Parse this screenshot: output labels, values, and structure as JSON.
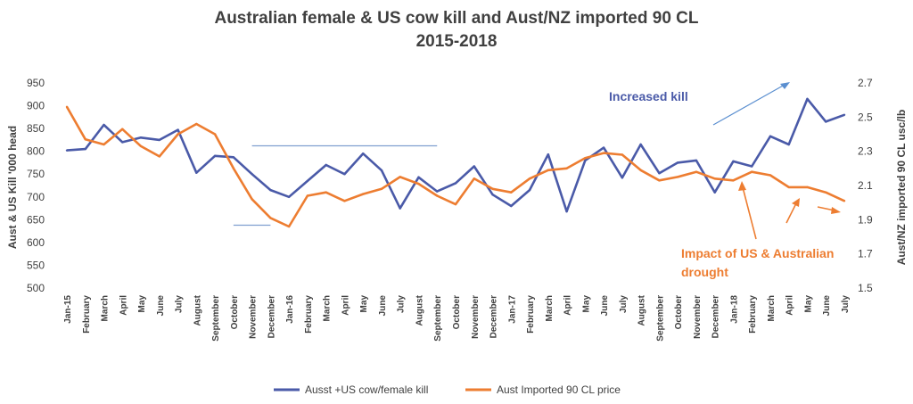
{
  "chart_data": {
    "type": "line",
    "title": "Australian female & US cow kill and  Aust/NZ imported 90 CL",
    "subtitle": "2015-2018",
    "ylabel": "Aust & US Kill '000 head",
    "y2label": "Aust/NZ imported 90 CL usc/lb",
    "ylim": [
      500,
      950
    ],
    "yticks": [
      500,
      550,
      600,
      650,
      700,
      750,
      800,
      850,
      900,
      950
    ],
    "y2lim": [
      1.5,
      2.7
    ],
    "y2ticks": [
      "1.5",
      "1.7",
      "1.9",
      "2.1",
      "2.3",
      "2.5",
      "2.7"
    ],
    "grid": false,
    "legend_position": "bottom",
    "categories": [
      "Jan-15",
      "February",
      "March",
      "April",
      "May",
      "June",
      "July",
      "August",
      "September",
      "October",
      "November",
      "December",
      "Jan-16",
      "February",
      "March",
      "April",
      "May",
      "June",
      "July",
      "August",
      "September",
      "October",
      "November",
      "December",
      "Jan-17",
      "February",
      "March",
      "April",
      "May",
      "June",
      "July",
      "August",
      "September",
      "October",
      "November",
      "December",
      "Jan-18",
      "February",
      "March",
      "April",
      "May",
      "June",
      "July"
    ],
    "series": [
      {
        "name": "Ausst +US cow/female kill",
        "axis": "left",
        "color": "#4a5aa8",
        "values": [
          802,
          805,
          858,
          820,
          830,
          825,
          847,
          753,
          790,
          787,
          750,
          715,
          700,
          735,
          770,
          750,
          795,
          758,
          675,
          743,
          712,
          730,
          767,
          705,
          680,
          715,
          793,
          668,
          780,
          808,
          742,
          815,
          752,
          775,
          780,
          710,
          778,
          767,
          833,
          815,
          915,
          865,
          880
        ]
      },
      {
        "name": "Aust Imported 90 CL price",
        "axis": "right",
        "color": "#ed7d31",
        "values": [
          2.56,
          2.37,
          2.34,
          2.43,
          2.33,
          2.27,
          2.4,
          2.46,
          2.4,
          2.2,
          2.02,
          1.91,
          1.86,
          2.04,
          2.06,
          2.01,
          2.05,
          2.08,
          2.15,
          2.11,
          2.04,
          1.99,
          2.14,
          2.08,
          2.06,
          2.14,
          2.19,
          2.2,
          2.26,
          2.29,
          2.28,
          2.19,
          2.13,
          2.15,
          2.18,
          2.14,
          2.13,
          2.18,
          2.16,
          2.09,
          2.09,
          2.06,
          2.01
        ]
      }
    ],
    "reference_lines": [
      {
        "from": "November",
        "to": "September",
        "value": 812
      },
      {
        "from": "October",
        "to": "December",
        "value": 638
      }
    ],
    "annotations": [
      {
        "text": "Increased kill",
        "color": "#4a5aa8"
      },
      {
        "text": "Impact of US & Australian",
        "color": "#ed7d31"
      },
      {
        "text": "drought",
        "color": "#ed7d31"
      }
    ]
  }
}
